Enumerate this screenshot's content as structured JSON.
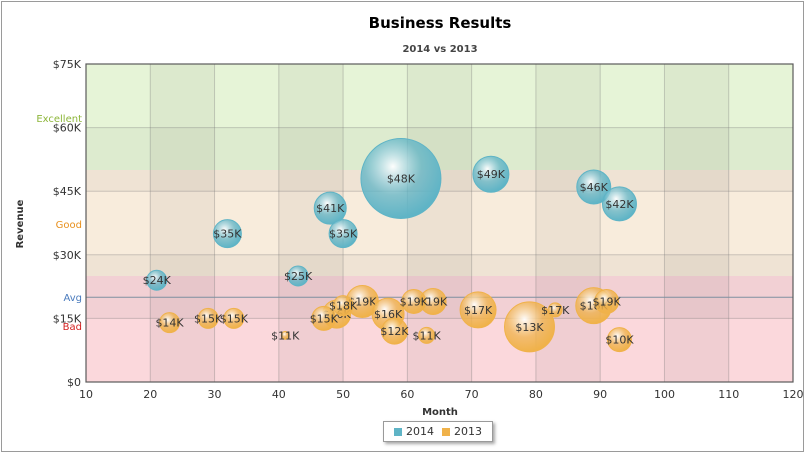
{
  "chart_data": {
    "type": "bubble",
    "title": "Business Results",
    "subtitle": "2014 vs 2013",
    "xlabel": "Month",
    "ylabel": "Revenue",
    "xlim": [
      10,
      120
    ],
    "ylim": [
      0,
      75
    ],
    "x_ticks": [
      10,
      20,
      30,
      40,
      50,
      60,
      70,
      80,
      90,
      100,
      110,
      120
    ],
    "y_ticks": [
      {
        "value": 0,
        "label": "$0"
      },
      {
        "value": 15,
        "label": "$15K"
      },
      {
        "value": 30,
        "label": "$30K"
      },
      {
        "value": 45,
        "label": "$45K"
      },
      {
        "value": 60,
        "label": "$60K"
      },
      {
        "value": 75,
        "label": "$75K"
      }
    ],
    "grid": true,
    "bands": [
      {
        "name": "Excellent",
        "from": 50,
        "to": 75,
        "color": "#e6f4d7",
        "label_color": "#8db63a",
        "label_value": 62
      },
      {
        "name": "Good",
        "from": 25,
        "to": 50,
        "color": "#f8ecdc",
        "label_color": "#e8901c",
        "label_value": 37
      },
      {
        "name": "Bad",
        "from": 0,
        "to": 25,
        "color": "#fbd8dc",
        "label_color": "#d42020",
        "label_value": 13
      }
    ],
    "trend_lines": [
      {
        "name": "Avg",
        "value": 20,
        "color": "#7f8fa0",
        "label_color": "#4a7bbd"
      }
    ],
    "legend_position": "bottom-center",
    "series": [
      {
        "name": "2014",
        "color": "#5fb4c6",
        "points": [
          {
            "x": 21,
            "y": 24,
            "r": 10,
            "label": "$24K"
          },
          {
            "x": 32,
            "y": 35,
            "r": 14,
            "label": "$35K"
          },
          {
            "x": 43,
            "y": 25,
            "r": 10,
            "label": "$25K"
          },
          {
            "x": 48,
            "y": 41,
            "r": 16,
            "label": "$41K"
          },
          {
            "x": 50,
            "y": 35,
            "r": 14,
            "label": "$35K"
          },
          {
            "x": 59,
            "y": 48,
            "r": 40,
            "label": "$48K"
          },
          {
            "x": 73,
            "y": 49,
            "r": 18,
            "label": "$49K"
          },
          {
            "x": 89,
            "y": 46,
            "r": 17,
            "label": "$46K"
          },
          {
            "x": 93,
            "y": 42,
            "r": 17,
            "label": "$42K"
          }
        ]
      },
      {
        "name": "2013",
        "color": "#f0b24a",
        "points": [
          {
            "x": 23,
            "y": 14,
            "r": 10,
            "label": "$14K"
          },
          {
            "x": 29,
            "y": 15,
            "r": 10,
            "label": "$15K"
          },
          {
            "x": 33,
            "y": 15,
            "r": 10,
            "label": "$15K"
          },
          {
            "x": 41,
            "y": 11,
            "r": 4,
            "label": "$11K"
          },
          {
            "x": 47,
            "y": 15,
            "r": 12,
            "label": "$15K"
          },
          {
            "x": 49,
            "y": 16,
            "r": 14,
            "label": "$16K"
          },
          {
            "x": 50,
            "y": 18,
            "r": 10,
            "label": "$18K"
          },
          {
            "x": 53,
            "y": 19,
            "r": 16,
            "label": "$19K"
          },
          {
            "x": 57,
            "y": 16,
            "r": 16,
            "label": "$16K"
          },
          {
            "x": 58,
            "y": 12,
            "r": 13,
            "label": "$12K"
          },
          {
            "x": 61,
            "y": 19,
            "r": 12,
            "label": "$19K"
          },
          {
            "x": 63,
            "y": 11,
            "r": 8,
            "label": "$11K"
          },
          {
            "x": 64,
            "y": 19,
            "r": 13,
            "label": "$19K"
          },
          {
            "x": 71,
            "y": 17,
            "r": 18,
            "label": "$17K"
          },
          {
            "x": 79,
            "y": 13,
            "r": 25,
            "label": "$13K"
          },
          {
            "x": 83,
            "y": 17,
            "r": 7,
            "label": "$17K"
          },
          {
            "x": 89,
            "y": 18,
            "r": 18,
            "label": "$18K"
          },
          {
            "x": 91,
            "y": 19,
            "r": 12,
            "label": "$19K"
          },
          {
            "x": 93,
            "y": 10,
            "r": 12,
            "label": "$10K"
          }
        ]
      }
    ]
  }
}
